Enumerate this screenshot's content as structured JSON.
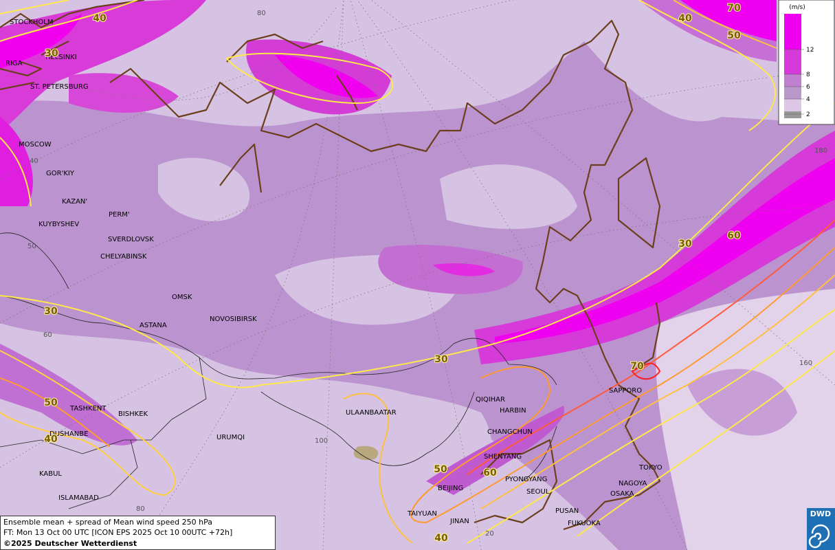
{
  "legend": {
    "unit": "(m/s)",
    "levels": [
      12,
      8,
      6,
      4,
      2
    ]
  },
  "cities": [
    "STOCKHOLM",
    "HELSINKI",
    "RIGA",
    "ST. PETERSBURG",
    "MOSCOW",
    "GOR'KIY",
    "KAZAN'",
    "KUYBYSHEV",
    "PERM'",
    "SVERDLOVSK",
    "CHELYABINSK",
    "OMSK",
    "ASTANA",
    "NOVOSIBIRSK",
    "TASHKENT",
    "BISHKEK",
    "DUSHANBE",
    "KABUL",
    "ISLAMABAD",
    "URUMQI",
    "ULAANBAATAR",
    "QIQIHAR",
    "HARBIN",
    "CHANGCHUN",
    "SHENYANG",
    "BEIJING",
    "PYONGYANG",
    "SEOUL",
    "TAIYUAN",
    "JINAN",
    "PUSAN",
    "FUKUOKA",
    "OSAKA",
    "NAGOYA",
    "TOKYO",
    "SAPPORO"
  ],
  "contour_labels": [
    40,
    30,
    30,
    30,
    30,
    50,
    40,
    70,
    40,
    50,
    60,
    70,
    50,
    60,
    40
  ],
  "grid_labels": [
    80,
    180,
    40,
    50,
    60,
    100,
    160,
    80,
    20
  ],
  "caption": {
    "line1": "Ensemble mean + spread of Mean wind speed 250 hPa",
    "line2": "FT: Mon 13 Oct 00 UTC [ICON EPS 2025 Oct 10 00UTC +72h]",
    "line3": "©2025 Deutscher Wetterdienst"
  },
  "logo": "DWD"
}
